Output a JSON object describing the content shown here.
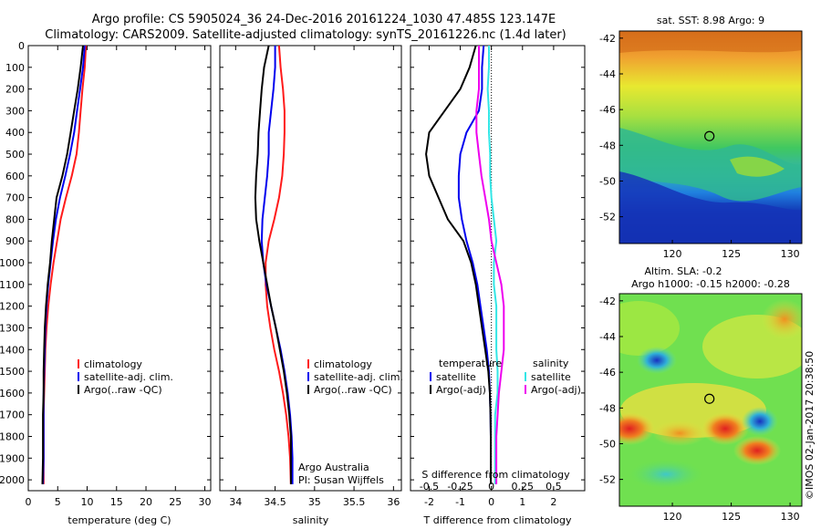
{
  "header": {
    "line1": "Argo profile: CS 5905024_36 24-Dec-2016 20161224_1030 47.485S 123.147E",
    "line2": "Climatology: CARS2009. Satellite-adjusted climatology: synTS_20161226.nc (1.4d later)"
  },
  "colors": {
    "climatology": "#ff1a1a",
    "satellite": "#0000ee",
    "argo": "#000000",
    "sal_satellite": "#33e6e6",
    "sal_argo": "#ee00ee"
  },
  "chart_data": [
    {
      "id": "temperature",
      "type": "line",
      "xlabel": "temperature (deg C)",
      "ylabel": "",
      "xlim": [
        0,
        31
      ],
      "ylim": [
        2050,
        0
      ],
      "xticks": [
        0,
        5,
        10,
        15,
        20,
        25,
        30
      ],
      "yticks": [
        0,
        100,
        200,
        300,
        400,
        500,
        600,
        700,
        800,
        900,
        1000,
        1100,
        1200,
        1300,
        1400,
        1500,
        1600,
        1700,
        1800,
        1900,
        2000
      ],
      "legend": {
        "placement": "center-left",
        "entries": [
          "climatology",
          "satellite-adj. clim.",
          "Argo(..raw -QC)"
        ]
      },
      "series": [
        {
          "name": "climatology",
          "color": "#ff1a1a",
          "x": [
            9.8,
            9.6,
            9.2,
            8.9,
            8.6,
            8.2,
            7.4,
            6.4,
            5.5,
            4.9,
            4.3,
            3.8,
            3.4,
            3.1,
            2.9,
            2.8,
            2.7,
            2.6,
            2.6,
            2.6,
            2.6
          ],
          "y": [
            0,
            100,
            200,
            300,
            400,
            500,
            600,
            700,
            800,
            900,
            1000,
            1100,
            1200,
            1300,
            1400,
            1500,
            1600,
            1700,
            1800,
            1900,
            2020
          ]
        },
        {
          "name": "satellite-adj. clim.",
          "color": "#0000ee",
          "x": [
            9.6,
            9.3,
            8.8,
            8.3,
            7.8,
            7.1,
            6.3,
            5.4,
            4.7,
            4.2,
            3.8,
            3.4,
            3.1,
            2.9,
            2.8,
            2.7,
            2.6,
            2.6,
            2.6,
            2.6,
            2.5
          ],
          "y": [
            0,
            100,
            200,
            300,
            400,
            500,
            600,
            700,
            800,
            900,
            1000,
            1100,
            1200,
            1300,
            1400,
            1500,
            1600,
            1700,
            1800,
            1900,
            2020
          ]
        },
        {
          "name": "Argo(..raw -QC)",
          "color": "#000000",
          "x": [
            9.3,
            8.9,
            8.4,
            7.8,
            7.2,
            6.6,
            5.8,
            4.8,
            4.4,
            4.0,
            3.7,
            3.3,
            3.0,
            2.8,
            2.7,
            2.6,
            2.6,
            2.5,
            2.5,
            2.5,
            2.4
          ],
          "y": [
            0,
            100,
            200,
            300,
            400,
            500,
            600,
            700,
            800,
            900,
            1000,
            1100,
            1200,
            1300,
            1400,
            1500,
            1600,
            1700,
            1800,
            1900,
            2020
          ]
        }
      ]
    },
    {
      "id": "salinity",
      "type": "line",
      "xlabel": "salinity",
      "ylabel": "",
      "xlim": [
        33.8,
        36.1
      ],
      "ylim": [
        2050,
        0
      ],
      "xticks": [
        34,
        34.5,
        35,
        35.5,
        36
      ],
      "legend": {
        "placement": "center-right",
        "entries": [
          "climatology",
          "satellite-adj. clim.",
          "Argo(..raw -QC)"
        ]
      },
      "annotation": [
        "Argo Australia",
        "PI: Susan Wijffels"
      ],
      "series": [
        {
          "name": "climatology",
          "color": "#ff1a1a",
          "x": [
            34.55,
            34.57,
            34.6,
            34.62,
            34.62,
            34.61,
            34.59,
            34.55,
            34.49,
            34.42,
            34.38,
            34.38,
            34.4,
            34.44,
            34.49,
            34.55,
            34.6,
            34.64,
            34.67,
            34.69,
            34.7
          ],
          "y": [
            0,
            100,
            200,
            300,
            400,
            500,
            600,
            700,
            800,
            900,
            1000,
            1100,
            1200,
            1300,
            1400,
            1500,
            1600,
            1700,
            1800,
            1900,
            2020
          ]
        },
        {
          "name": "satellite-adj. clim.",
          "color": "#0000ee",
          "x": [
            34.5,
            34.5,
            34.48,
            34.45,
            34.42,
            34.42,
            34.4,
            34.37,
            34.34,
            34.33,
            34.35,
            34.39,
            34.45,
            34.51,
            34.57,
            34.62,
            34.66,
            34.69,
            34.71,
            34.72,
            34.72
          ],
          "y": [
            0,
            100,
            200,
            300,
            400,
            500,
            600,
            700,
            800,
            900,
            1000,
            1100,
            1200,
            1300,
            1400,
            1500,
            1600,
            1700,
            1800,
            1900,
            2020
          ]
        },
        {
          "name": "Argo(..raw -QC)",
          "color": "#000000",
          "x": [
            34.42,
            34.36,
            34.33,
            34.31,
            34.29,
            34.28,
            34.26,
            34.25,
            34.26,
            34.3,
            34.35,
            34.4,
            34.45,
            34.51,
            34.56,
            34.61,
            34.65,
            34.68,
            34.7,
            34.7,
            34.7
          ],
          "y": [
            0,
            100,
            200,
            300,
            400,
            500,
            600,
            700,
            800,
            900,
            1000,
            1100,
            1200,
            1300,
            1400,
            1500,
            1600,
            1700,
            1800,
            1900,
            2020
          ]
        }
      ]
    },
    {
      "id": "difference",
      "type": "line",
      "xlabel": "T difference from climatology",
      "x2label": "S difference from climatology",
      "ylabel": "",
      "xlim": [
        -2.6,
        3.0
      ],
      "x2lim": [
        -0.65,
        0.75
      ],
      "ylim": [
        2050,
        0
      ],
      "xticks": [
        -2,
        -1,
        0,
        1,
        2
      ],
      "x2ticks": [
        -0.5,
        -0.25,
        0,
        0.25,
        0.5
      ],
      "x2ticklabels": [
        "-0.5",
        "-0.25",
        "0",
        "0.25",
        "0.5"
      ],
      "legend": {
        "placement": "lower-center",
        "temperature_title": "temperature",
        "salinity_title": "salinity",
        "temperature_entries": [
          "satellite",
          "Argo(-adj)"
        ],
        "salinity_entries": [
          "satellite",
          "Argo(-adj)"
        ]
      },
      "zero_line": "dotted",
      "series": [
        {
          "name": "satellite",
          "group": "temperature",
          "color": "#0000ee",
          "x": [
            -0.25,
            -0.3,
            -0.3,
            -0.4,
            -0.8,
            -1.0,
            -1.05,
            -1.05,
            -0.95,
            -0.8,
            -0.6,
            -0.45,
            -0.35,
            -0.25,
            -0.15,
            -0.08,
            -0.05,
            -0.03,
            -0.02,
            -0.02,
            -0.02
          ],
          "y": [
            0,
            100,
            200,
            300,
            400,
            500,
            600,
            700,
            800,
            900,
            1000,
            1100,
            1200,
            1300,
            1400,
            1500,
            1600,
            1700,
            1800,
            1900,
            2020
          ]
        },
        {
          "name": "Argo(-adj)",
          "group": "temperature",
          "color": "#000000",
          "x": [
            -0.5,
            -0.7,
            -1.0,
            -1.5,
            -2.0,
            -2.1,
            -2.0,
            -1.7,
            -1.4,
            -0.9,
            -0.65,
            -0.5,
            -0.4,
            -0.3,
            -0.2,
            -0.1,
            -0.05,
            -0.03,
            -0.02,
            -0.02,
            -0.02
          ],
          "y": [
            0,
            100,
            200,
            300,
            400,
            500,
            600,
            700,
            800,
            900,
            1000,
            1100,
            1200,
            1300,
            1400,
            1500,
            1600,
            1700,
            1800,
            1900,
            2020
          ]
        },
        {
          "name": "satellite",
          "group": "salinity",
          "color": "#33e6e6",
          "x": [
            -0.02,
            -0.02,
            -0.03,
            -0.02,
            -0.02,
            -0.01,
            -0.01,
            0.0,
            0.02,
            0.04,
            0.02,
            0.02,
            0.04,
            0.04,
            0.04,
            0.05,
            0.05,
            0.03,
            0.03,
            0.03,
            0.03
          ],
          "y": [
            0,
            100,
            200,
            300,
            400,
            500,
            600,
            700,
            800,
            900,
            1000,
            1100,
            1200,
            1300,
            1400,
            1500,
            1600,
            1700,
            1800,
            1900,
            2020
          ]
        },
        {
          "name": "Argo(-adj)",
          "group": "salinity",
          "color": "#ee00ee",
          "x": [
            -0.1,
            -0.1,
            -0.1,
            -0.12,
            -0.12,
            -0.1,
            -0.08,
            -0.05,
            -0.02,
            0.0,
            0.04,
            0.08,
            0.1,
            0.1,
            0.1,
            0.08,
            0.06,
            0.05,
            0.04,
            0.04,
            0.04
          ],
          "y": [
            0,
            100,
            200,
            300,
            400,
            500,
            600,
            700,
            800,
            900,
            1000,
            1100,
            1200,
            1300,
            1400,
            1500,
            1600,
            1700,
            1800,
            1900,
            2020
          ]
        }
      ]
    },
    {
      "id": "sst_map",
      "type": "heatmap",
      "title": "sat. SST: 8.98 Argo: 9",
      "xlim": [
        115.5,
        131
      ],
      "ylim": [
        -53.5,
        -41.6
      ],
      "xticks": [
        120,
        125,
        130
      ],
      "yticks": [
        -42,
        -44,
        -46,
        -48,
        -50,
        -52
      ],
      "marker": {
        "lon": 123.147,
        "lat": -47.485
      }
    },
    {
      "id": "sla_map",
      "type": "heatmap",
      "title_lines": [
        "Altim. SLA: -0.2",
        "Argo h1000: -0.15 h2000: -0.28"
      ],
      "xlim": [
        115.5,
        131
      ],
      "ylim": [
        -53.5,
        -41.6
      ],
      "xticks": [
        120,
        125,
        130
      ],
      "yticks": [
        -42,
        -44,
        -46,
        -48,
        -50,
        -52
      ],
      "marker": {
        "lon": 123.147,
        "lat": -47.485
      }
    }
  ],
  "watermark": "©IMOS 02-Jan-2017 20:38:50"
}
